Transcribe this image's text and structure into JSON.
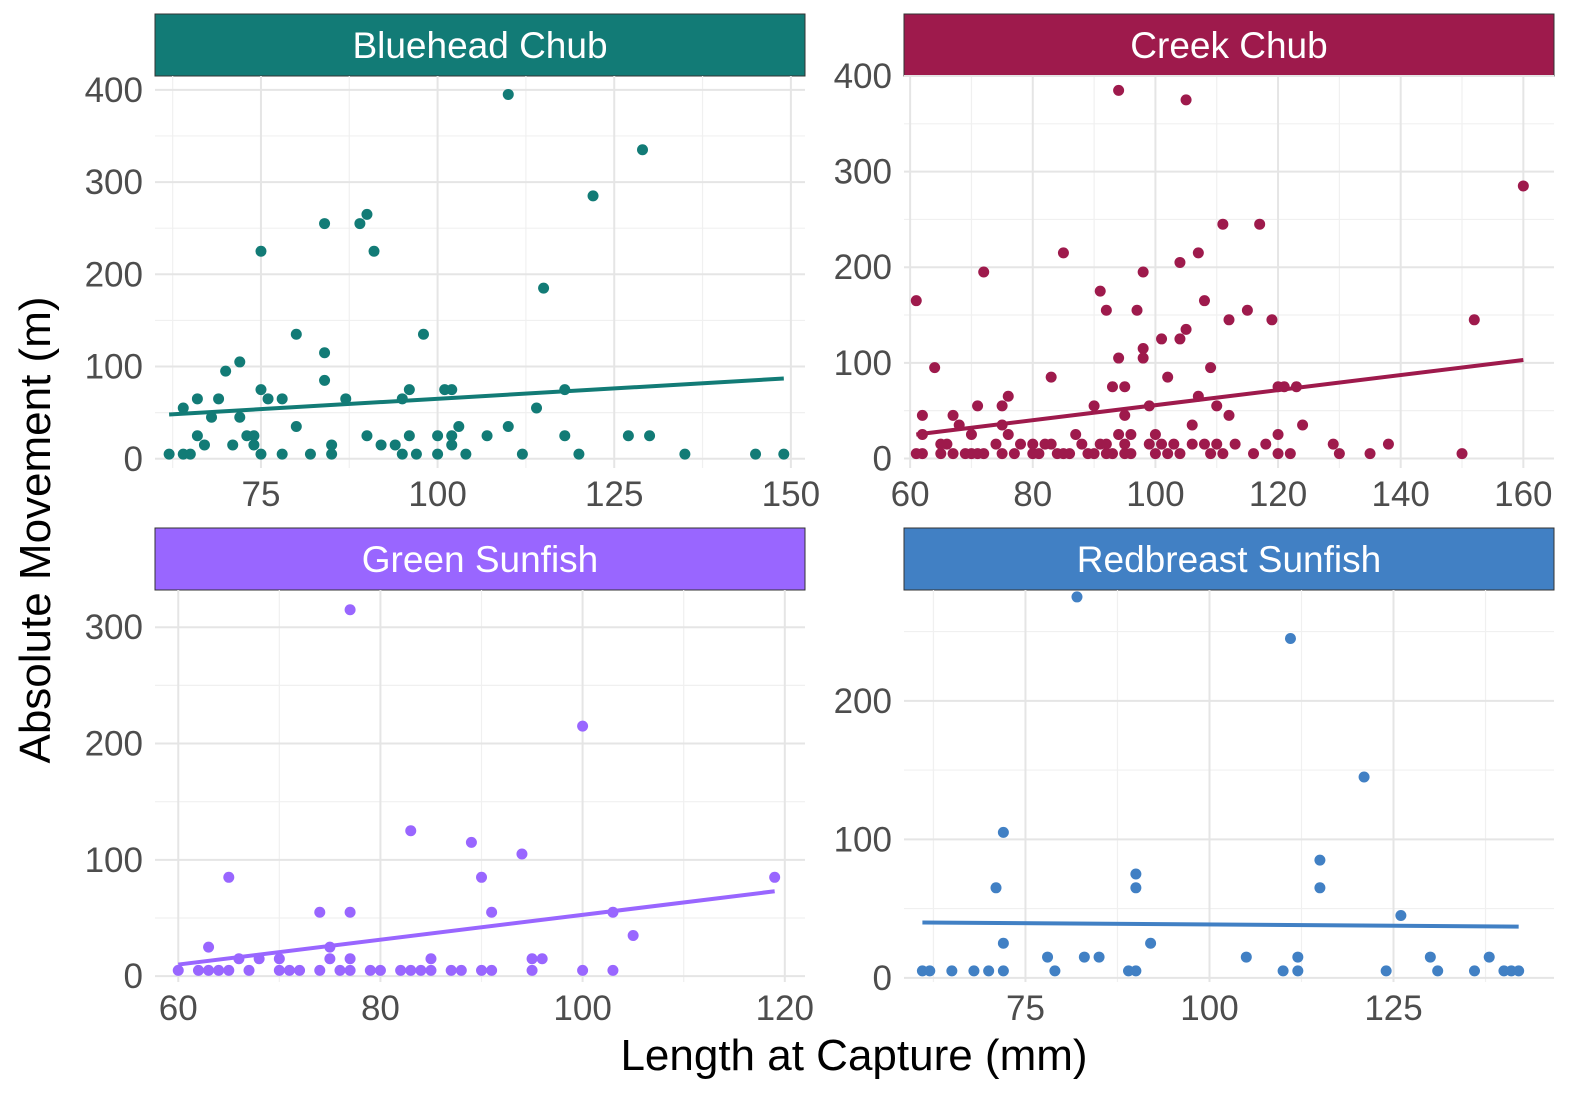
{
  "figure": {
    "xlabel": "Length at Capture (mm)",
    "ylabel": "Absolute Movement (m)"
  },
  "chart_data": [
    {
      "type": "scatter",
      "title": "Bluehead Chub",
      "color": "#127B76",
      "xlim": [
        60,
        152
      ],
      "ylim": [
        -10,
        415
      ],
      "xticks": [
        75,
        100,
        125,
        150
      ],
      "yticks": [
        0,
        100,
        200,
        300,
        400
      ],
      "xtick_labels": [
        "75",
        "100",
        "125",
        "150"
      ],
      "ytick_labels": [
        "0",
        "100",
        "200",
        "300",
        "400"
      ],
      "points": [
        [
          62,
          5
        ],
        [
          64,
          55
        ],
        [
          64,
          5
        ],
        [
          65,
          5
        ],
        [
          66,
          25
        ],
        [
          66,
          65
        ],
        [
          67,
          15
        ],
        [
          68,
          45
        ],
        [
          69,
          65
        ],
        [
          70,
          95
        ],
        [
          71,
          15
        ],
        [
          72,
          105
        ],
        [
          72,
          45
        ],
        [
          73,
          25
        ],
        [
          74,
          25
        ],
        [
          74,
          15
        ],
        [
          75,
          225
        ],
        [
          75,
          75
        ],
        [
          75,
          5
        ],
        [
          76,
          65
        ],
        [
          78,
          65
        ],
        [
          78,
          5
        ],
        [
          80,
          135
        ],
        [
          80,
          35
        ],
        [
          82,
          5
        ],
        [
          84,
          255
        ],
        [
          84,
          115
        ],
        [
          84,
          85
        ],
        [
          85,
          15
        ],
        [
          85,
          5
        ],
        [
          87,
          65
        ],
        [
          89,
          255
        ],
        [
          90,
          265
        ],
        [
          90,
          25
        ],
        [
          91,
          225
        ],
        [
          92,
          15
        ],
        [
          94,
          15
        ],
        [
          95,
          5
        ],
        [
          95,
          65
        ],
        [
          96,
          75
        ],
        [
          96,
          25
        ],
        [
          97,
          5
        ],
        [
          98,
          135
        ],
        [
          100,
          25
        ],
        [
          100,
          5
        ],
        [
          101,
          75
        ],
        [
          102,
          75
        ],
        [
          102,
          25
        ],
        [
          102,
          15
        ],
        [
          103,
          35
        ],
        [
          104,
          5
        ],
        [
          107,
          25
        ],
        [
          110,
          395
        ],
        [
          110,
          35
        ],
        [
          112,
          5
        ],
        [
          114,
          55
        ],
        [
          115,
          185
        ],
        [
          118,
          75
        ],
        [
          118,
          25
        ],
        [
          120,
          5
        ],
        [
          122,
          285
        ],
        [
          127,
          25
        ],
        [
          129,
          335
        ],
        [
          130,
          25
        ],
        [
          135,
          5
        ],
        [
          145,
          5
        ],
        [
          149,
          5
        ]
      ],
      "trend": {
        "x": [
          62,
          149
        ],
        "y": [
          48,
          87
        ]
      }
    },
    {
      "type": "scatter",
      "title": "Creek Chub",
      "color": "#9E1A4C",
      "xlim": [
        59,
        165
      ],
      "ylim": [
        -10,
        400
      ],
      "xticks": [
        60,
        80,
        100,
        120,
        140,
        160
      ],
      "yticks": [
        0,
        100,
        200,
        300,
        400
      ],
      "xtick_labels": [
        "60",
        "80",
        "100",
        "120",
        "140",
        "160"
      ],
      "ytick_labels": [
        "0",
        "100",
        "200",
        "300",
        "400"
      ],
      "points": [
        [
          61,
          165
        ],
        [
          61,
          5
        ],
        [
          62,
          45
        ],
        [
          62,
          25
        ],
        [
          62,
          5
        ],
        [
          64,
          95
        ],
        [
          65,
          5
        ],
        [
          65,
          15
        ],
        [
          66,
          15
        ],
        [
          67,
          45
        ],
        [
          67,
          5
        ],
        [
          68,
          35
        ],
        [
          69,
          5
        ],
        [
          70,
          5
        ],
        [
          70,
          25
        ],
        [
          71,
          55
        ],
        [
          71,
          5
        ],
        [
          72,
          195
        ],
        [
          72,
          5
        ],
        [
          74,
          15
        ],
        [
          75,
          55
        ],
        [
          75,
          35
        ],
        [
          75,
          5
        ],
        [
          76,
          25
        ],
        [
          76,
          65
        ],
        [
          77,
          5
        ],
        [
          78,
          15
        ],
        [
          80,
          15
        ],
        [
          80,
          5
        ],
        [
          81,
          5
        ],
        [
          82,
          15
        ],
        [
          83,
          15
        ],
        [
          83,
          85
        ],
        [
          84,
          5
        ],
        [
          85,
          215
        ],
        [
          85,
          5
        ],
        [
          86,
          5
        ],
        [
          87,
          25
        ],
        [
          88,
          15
        ],
        [
          89,
          5
        ],
        [
          90,
          55
        ],
        [
          90,
          5
        ],
        [
          91,
          175
        ],
        [
          91,
          15
        ],
        [
          92,
          15
        ],
        [
          92,
          155
        ],
        [
          92,
          5
        ],
        [
          93,
          5
        ],
        [
          93,
          75
        ],
        [
          94,
          105
        ],
        [
          94,
          25
        ],
        [
          94,
          385
        ],
        [
          95,
          75
        ],
        [
          95,
          45
        ],
        [
          95,
          15
        ],
        [
          95,
          5
        ],
        [
          96,
          25
        ],
        [
          96,
          5
        ],
        [
          97,
          155
        ],
        [
          98,
          105
        ],
        [
          98,
          115
        ],
        [
          98,
          195
        ],
        [
          99,
          55
        ],
        [
          99,
          15
        ],
        [
          100,
          5
        ],
        [
          100,
          25
        ],
        [
          101,
          125
        ],
        [
          101,
          15
        ],
        [
          102,
          85
        ],
        [
          102,
          5
        ],
        [
          103,
          15
        ],
        [
          104,
          5
        ],
        [
          104,
          205
        ],
        [
          104,
          125
        ],
        [
          105,
          135
        ],
        [
          105,
          375
        ],
        [
          106,
          15
        ],
        [
          106,
          35
        ],
        [
          107,
          215
        ],
        [
          107,
          65
        ],
        [
          108,
          165
        ],
        [
          108,
          15
        ],
        [
          109,
          5
        ],
        [
          109,
          95
        ],
        [
          110,
          55
        ],
        [
          110,
          15
        ],
        [
          111,
          245
        ],
        [
          111,
          5
        ],
        [
          112,
          145
        ],
        [
          112,
          45
        ],
        [
          113,
          15
        ],
        [
          115,
          155
        ],
        [
          116,
          5
        ],
        [
          117,
          245
        ],
        [
          118,
          15
        ],
        [
          119,
          145
        ],
        [
          120,
          75
        ],
        [
          120,
          25
        ],
        [
          120,
          5
        ],
        [
          121,
          75
        ],
        [
          122,
          5
        ],
        [
          123,
          75
        ],
        [
          124,
          35
        ],
        [
          129,
          15
        ],
        [
          130,
          5
        ],
        [
          135,
          5
        ],
        [
          138,
          15
        ],
        [
          150,
          5
        ],
        [
          152,
          145
        ],
        [
          160,
          285
        ]
      ],
      "trend": {
        "x": [
          61,
          160
        ],
        "y": [
          25,
          103
        ]
      }
    },
    {
      "type": "scatter",
      "title": "Green Sunfish",
      "color": "#9966FF",
      "xlim": [
        57.7,
        122
      ],
      "ylim": [
        -5,
        332
      ],
      "xticks": [
        60,
        80,
        100,
        120
      ],
      "yticks": [
        0,
        100,
        200,
        300
      ],
      "xtick_labels": [
        "60",
        "80",
        "100",
        "120"
      ],
      "ytick_labels": [
        "0",
        "100",
        "200",
        "300"
      ],
      "points": [
        [
          60,
          5
        ],
        [
          62,
          5
        ],
        [
          63,
          5
        ],
        [
          63,
          25
        ],
        [
          64,
          5
        ],
        [
          65,
          85
        ],
        [
          65,
          5
        ],
        [
          66,
          15
        ],
        [
          67,
          5
        ],
        [
          68,
          15
        ],
        [
          70,
          15
        ],
        [
          70,
          5
        ],
        [
          71,
          5
        ],
        [
          72,
          5
        ],
        [
          74,
          55
        ],
        [
          74,
          5
        ],
        [
          75,
          25
        ],
        [
          75,
          15
        ],
        [
          76,
          5
        ],
        [
          77,
          315
        ],
        [
          77,
          55
        ],
        [
          77,
          15
        ],
        [
          77,
          5
        ],
        [
          79,
          5
        ],
        [
          80,
          5
        ],
        [
          82,
          5
        ],
        [
          83,
          125
        ],
        [
          83,
          5
        ],
        [
          84,
          5
        ],
        [
          85,
          15
        ],
        [
          85,
          5
        ],
        [
          87,
          5
        ],
        [
          88,
          5
        ],
        [
          89,
          115
        ],
        [
          90,
          85
        ],
        [
          90,
          5
        ],
        [
          91,
          55
        ],
        [
          91,
          5
        ],
        [
          94,
          105
        ],
        [
          95,
          15
        ],
        [
          95,
          5
        ],
        [
          96,
          15
        ],
        [
          100,
          215
        ],
        [
          100,
          5
        ],
        [
          103,
          55
        ],
        [
          103,
          5
        ],
        [
          105,
          35
        ],
        [
          119,
          85
        ]
      ],
      "trend": {
        "x": [
          60,
          119
        ],
        "y": [
          10,
          73
        ]
      }
    },
    {
      "type": "scatter",
      "title": "Redbreast Sunfish",
      "color": "#4180C4",
      "xlim": [
        58.5,
        146.8
      ],
      "ylim": [
        -3,
        280
      ],
      "xticks": [
        75,
        100,
        125
      ],
      "yticks": [
        0,
        100,
        200
      ],
      "xtick_labels": [
        "75",
        "100",
        "125"
      ],
      "ytick_labels": [
        "0",
        "100",
        "200"
      ],
      "points": [
        [
          61,
          5
        ],
        [
          62,
          5
        ],
        [
          65,
          5
        ],
        [
          68,
          5
        ],
        [
          70,
          5
        ],
        [
          71,
          65
        ],
        [
          72,
          105
        ],
        [
          72,
          25
        ],
        [
          72,
          5
        ],
        [
          78,
          15
        ],
        [
          79,
          5
        ],
        [
          82,
          275
        ],
        [
          83,
          15
        ],
        [
          85,
          15
        ],
        [
          89,
          5
        ],
        [
          90,
          75
        ],
        [
          90,
          65
        ],
        [
          90,
          5
        ],
        [
          92,
          25
        ],
        [
          105,
          15
        ],
        [
          110,
          5
        ],
        [
          111,
          245
        ],
        [
          112,
          15
        ],
        [
          112,
          5
        ],
        [
          115,
          85
        ],
        [
          115,
          65
        ],
        [
          121,
          145
        ],
        [
          124,
          5
        ],
        [
          126,
          45
        ],
        [
          130,
          15
        ],
        [
          131,
          5
        ],
        [
          136,
          5
        ],
        [
          138,
          15
        ],
        [
          140,
          5
        ],
        [
          141,
          5
        ],
        [
          142,
          5
        ]
      ],
      "trend": {
        "x": [
          61,
          142
        ],
        "y": [
          40,
          37
        ]
      }
    }
  ]
}
